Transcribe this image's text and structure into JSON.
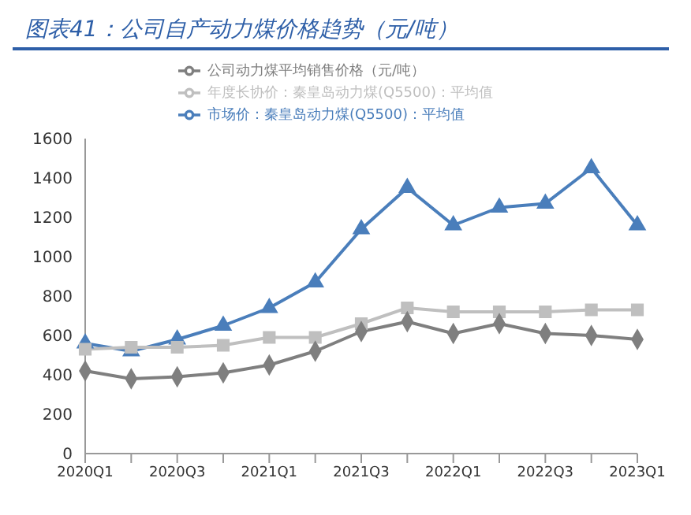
{
  "chart_data": {
    "type": "line",
    "title": "图表41：公司自产动力煤价格趋势（元/吨）",
    "categories": [
      "2020Q1",
      null,
      "2020Q3",
      null,
      "2021Q1",
      null,
      "2021Q3",
      null,
      "2022Q1",
      null,
      "2022Q3",
      null,
      "2023Q1"
    ],
    "series": [
      {
        "name": "公司动力煤平均销售价格（元/吨）",
        "color": "#7f7f7f",
        "marker": "diamond",
        "values": [
          420,
          380,
          390,
          410,
          450,
          520,
          620,
          670,
          610,
          660,
          610,
          600,
          580
        ]
      },
      {
        "name": "年度长协价：秦皇岛动力煤(Q5500)：平均值",
        "color": "#bfbfbf",
        "marker": "square",
        "values": [
          530,
          540,
          540,
          550,
          590,
          590,
          660,
          740,
          720,
          720,
          720,
          730,
          730
        ]
      },
      {
        "name": "市场价：秦皇岛动力煤(Q5500)：平均值",
        "color": "#4a7ebb",
        "marker": "triangle",
        "values": [
          560,
          520,
          580,
          650,
          740,
          870,
          1140,
          1350,
          1160,
          1250,
          1270,
          1450,
          1160
        ]
      }
    ],
    "ylim": [
      0,
      1600
    ],
    "yticks": [
      0,
      200,
      400,
      600,
      800,
      1000,
      1200,
      1400,
      1600
    ],
    "grid": false,
    "legend": "top",
    "line_style": "solid"
  }
}
